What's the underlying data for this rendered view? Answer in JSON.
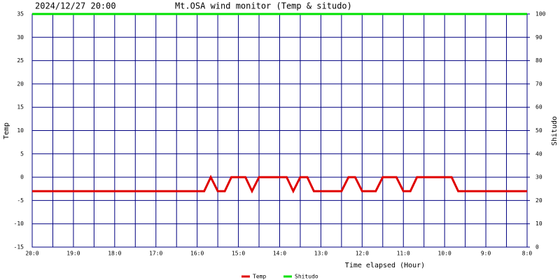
{
  "chart_data": {
    "type": "line",
    "date": "2024/12/27 20:00",
    "title": "Mt.OSA wind monitor (Temp & situdo)",
    "xlabel": "Time elapsed (Hour)",
    "ylabel": "Temp",
    "y2label": "Shitudo",
    "x": [
      0,
      4.17,
      4.33,
      4.5,
      4.67,
      4.83,
      5.17,
      5.33,
      5.5,
      6.17,
      6.33,
      6.5,
      6.67,
      6.83,
      7.5,
      7.67,
      7.83,
      8,
      8.33,
      8.5,
      8.83,
      9,
      9.17,
      9.33,
      10.17,
      10.33,
      12
    ],
    "series": [
      {
        "name": "Temp",
        "color": "#e00000",
        "values": [
          -3,
          -3,
          0,
          -3,
          -3,
          0,
          0,
          -3,
          0,
          0,
          -3,
          0,
          0,
          -3,
          -3,
          0,
          0,
          -3,
          -3,
          0,
          0,
          -3,
          -3,
          0,
          0,
          -3,
          -3
        ]
      },
      {
        "name": "Shitudo",
        "color": "#00e000",
        "axis": "y2",
        "values": [
          100,
          100,
          100,
          100,
          100,
          100,
          100,
          100,
          100,
          100,
          100,
          100,
          100,
          100,
          100,
          100,
          100,
          100,
          100,
          100,
          100,
          100,
          100,
          100,
          100,
          100,
          100
        ]
      }
    ],
    "xlim": [
      0,
      12
    ],
    "xticks": [
      {
        "value": 0,
        "label": "20:0"
      },
      {
        "value": 1,
        "label": "19:0"
      },
      {
        "value": 2,
        "label": "18:0"
      },
      {
        "value": 3,
        "label": "17:0"
      },
      {
        "value": 4,
        "label": "16:0"
      },
      {
        "value": 5,
        "label": "15:0"
      },
      {
        "value": 6,
        "label": "14:0"
      },
      {
        "value": 7,
        "label": "13:0"
      },
      {
        "value": 8,
        "label": "12:0"
      },
      {
        "value": 9,
        "label": "11:0"
      },
      {
        "value": 10,
        "label": "10:0"
      },
      {
        "value": 11,
        "label": "9:0"
      },
      {
        "value": 12,
        "label": "8:0"
      }
    ],
    "x_minor_ticks": [
      0.5,
      1.5,
      2.5,
      3.5,
      4.5,
      5.5,
      6.5,
      7.5,
      8.5,
      9.5,
      10.5,
      11.5
    ],
    "ylim": [
      -15,
      35
    ],
    "yticks": [
      -15,
      -10,
      -5,
      0,
      5,
      10,
      15,
      20,
      25,
      30,
      35
    ],
    "y2lim": [
      0,
      100
    ],
    "y2ticks": [
      0,
      10,
      20,
      30,
      40,
      50,
      60,
      70,
      80,
      90,
      100
    ],
    "grid": true,
    "grid_color": "#000080",
    "legend": "bottom"
  }
}
